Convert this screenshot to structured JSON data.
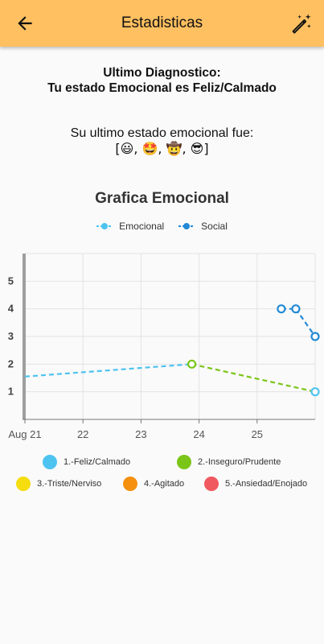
{
  "appbar": {
    "title": "Estadisticas",
    "back_icon": "arrow-left-icon",
    "action_icon": "auto-fix-magic-wand-icon",
    "color": "#ffc061"
  },
  "diagnostic": {
    "line1": "Ultimo Diagnostico:",
    "line2": "Tu estado Emocional es Feliz/Calmado"
  },
  "last_state": {
    "label": "Su ultimo estado emocional fue:",
    "emojis": "[😃, 🤩, 🤠, 😎]"
  },
  "chart_title": "Grafica Emocional",
  "chart_data": {
    "type": "line",
    "title": "Grafica Emocional",
    "xlabel": "",
    "ylabel": "",
    "x_ticks": [
      "Aug 21",
      "22",
      "23",
      "24",
      "25"
    ],
    "y_ticks": [
      "1",
      "2",
      "3",
      "4",
      "5"
    ],
    "ylim": [
      0,
      6
    ],
    "xlim": [
      "Aug 21",
      "Aug 26"
    ],
    "grid": true,
    "legend_position": "top",
    "series": [
      {
        "name": "Emocional",
        "color": "#4dc3f0",
        "style": "dashed",
        "points": [
          {
            "x": "2021-08-21",
            "y": 1.55
          },
          {
            "x": "2021-08-23 21:00",
            "y": 2,
            "color": "#7ac518"
          },
          {
            "x": "2021-08-26",
            "y": 1,
            "color": "#4dc3f0"
          }
        ]
      },
      {
        "name": "Social",
        "color": "#2389d6",
        "style": "dashed",
        "points": [
          {
            "x": "2021-08-25 10:00",
            "y": 4
          },
          {
            "x": "2021-08-25 16:00",
            "y": 4
          },
          {
            "x": "2021-08-26",
            "y": 3
          }
        ]
      }
    ]
  },
  "states_legend": [
    {
      "label": "1.-Feliz/Calmado",
      "color": "#4dc3f0"
    },
    {
      "label": "2.-Inseguro/Prudente",
      "color": "#7ac518"
    },
    {
      "label": "3.-Triste/Nerviso",
      "color": "#f5dd0f"
    },
    {
      "label": "4.-Agitado",
      "color": "#f5900f"
    },
    {
      "label": "5.-Ansiedad/Enojado",
      "color": "#f0595f"
    }
  ]
}
